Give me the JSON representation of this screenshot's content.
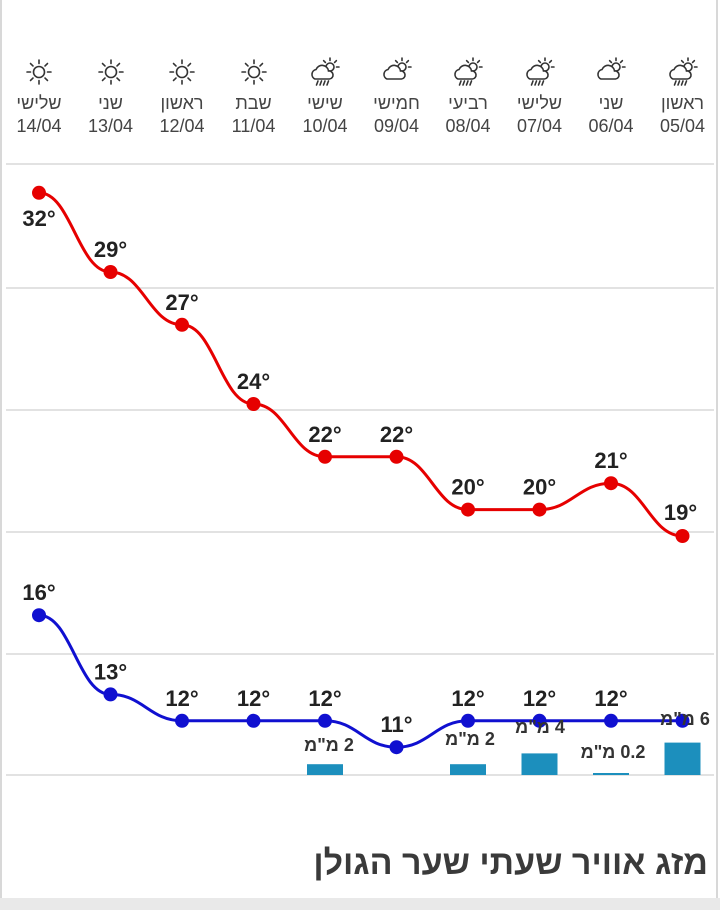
{
  "title": "מזג אוויר שעתי שער הגולן",
  "colors": {
    "high": "#e60000",
    "low": "#1010d0",
    "rain": "#1c8fbd",
    "grid": "#e2e2e2"
  },
  "chart_data": {
    "type": "line",
    "days": [
      {
        "name": "שלישי",
        "date": "14/04",
        "icon": "sun-icon"
      },
      {
        "name": "שני",
        "date": "13/04",
        "icon": "sun-icon"
      },
      {
        "name": "ראשון",
        "date": "12/04",
        "icon": "sun-icon"
      },
      {
        "name": "שבת",
        "date": "11/04",
        "icon": "sun-icon"
      },
      {
        "name": "שישי",
        "date": "10/04",
        "icon": "rain-cloud-sun-icon"
      },
      {
        "name": "חמישי",
        "date": "09/04",
        "icon": "cloud-sun-icon"
      },
      {
        "name": "רביעי",
        "date": "08/04",
        "icon": "rain-cloud-sun-icon"
      },
      {
        "name": "שלישי",
        "date": "07/04",
        "icon": "rain-cloud-sun-icon"
      },
      {
        "name": "שני",
        "date": "06/04",
        "icon": "cloud-sun-icon"
      },
      {
        "name": "ראשון",
        "date": "05/04",
        "icon": "rain-cloud-sun-icon"
      }
    ],
    "series": [
      {
        "values": [
          32,
          29,
          27,
          24,
          22,
          22,
          20,
          20,
          21,
          19
        ]
      },
      {
        "values": [
          16,
          13,
          12,
          12,
          12,
          11,
          12,
          12,
          12,
          12
        ]
      }
    ],
    "precipitation": [
      {
        "day_index": 4,
        "value": 2,
        "label": "2 מ\"מ"
      },
      {
        "day_index": 6,
        "value": 2,
        "label": "2 מ\"מ"
      },
      {
        "day_index": 7,
        "value": 4,
        "label": "4 מ\"מ"
      },
      {
        "day_index": 8,
        "value": 0.2,
        "label": "0.2 מ\"מ"
      },
      {
        "day_index": 9,
        "value": 6,
        "label": "6 מ\"מ"
      }
    ],
    "unit": "°",
    "grid": true
  }
}
